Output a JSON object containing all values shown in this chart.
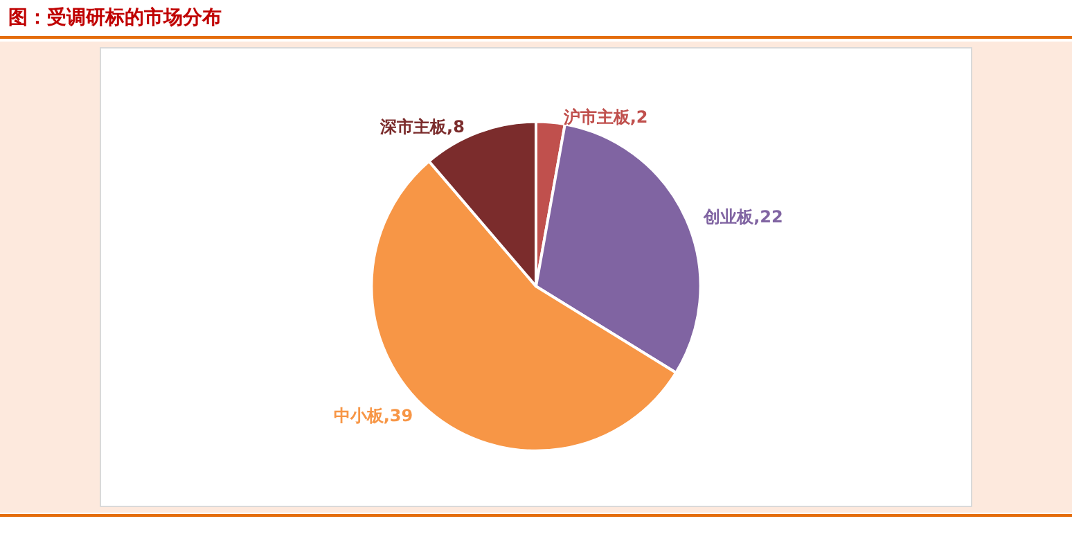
{
  "chart_data": {
    "type": "pie",
    "title": "图：受调研标的市场分布",
    "categories": [
      "沪市主板",
      "创业板",
      "中小板",
      "深市主板"
    ],
    "values": [
      2,
      22,
      39,
      8
    ],
    "colors": [
      "#c0504d",
      "#8064a2",
      "#f79646",
      "#7b2c2c"
    ],
    "value_labels": [
      ",2",
      ",22",
      ",39",
      ",8"
    ],
    "legend": false
  }
}
